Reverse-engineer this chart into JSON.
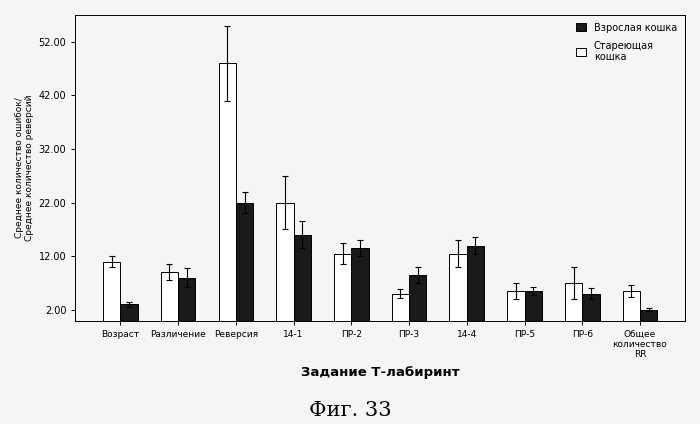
{
  "categories": [
    "Возраст",
    "Различение",
    "Реверсия",
    "14-1",
    "ПР-2",
    "ПР-3",
    "14-4",
    "ПР-5",
    "ПР-6",
    "Общее\nколичество\nRR"
  ],
  "aging_values": [
    11.0,
    9.0,
    48.0,
    22.0,
    12.5,
    5.0,
    12.5,
    5.5,
    7.0,
    5.5
  ],
  "aging_errors": [
    1.0,
    1.5,
    7.0,
    5.0,
    2.0,
    0.8,
    2.5,
    1.5,
    3.0,
    1.2
  ],
  "adult_values": [
    3.0,
    8.0,
    22.0,
    16.0,
    13.5,
    8.5,
    14.0,
    5.5,
    5.0,
    2.0
  ],
  "adult_errors": [
    0.4,
    1.8,
    2.0,
    2.5,
    1.5,
    1.5,
    1.5,
    0.8,
    1.0,
    0.3
  ],
  "adult_color": "#1a1a1a",
  "aging_color": "#ffffff",
  "adult_label": "Взрослая кошка",
  "aging_label": "Стареющая\nкошка",
  "ylabel": "Среднее количество ошибок/\nСреднее количество реверсий",
  "xlabel": "Задание Т-лабиринт",
  "title": "Фиг. 33",
  "yticks": [
    2.0,
    12.0,
    22.0,
    32.0,
    42.0,
    52.0
  ],
  "ylim": [
    0,
    57
  ],
  "bar_width": 0.3,
  "figsize": [
    7.0,
    4.24
  ],
  "dpi": 100
}
